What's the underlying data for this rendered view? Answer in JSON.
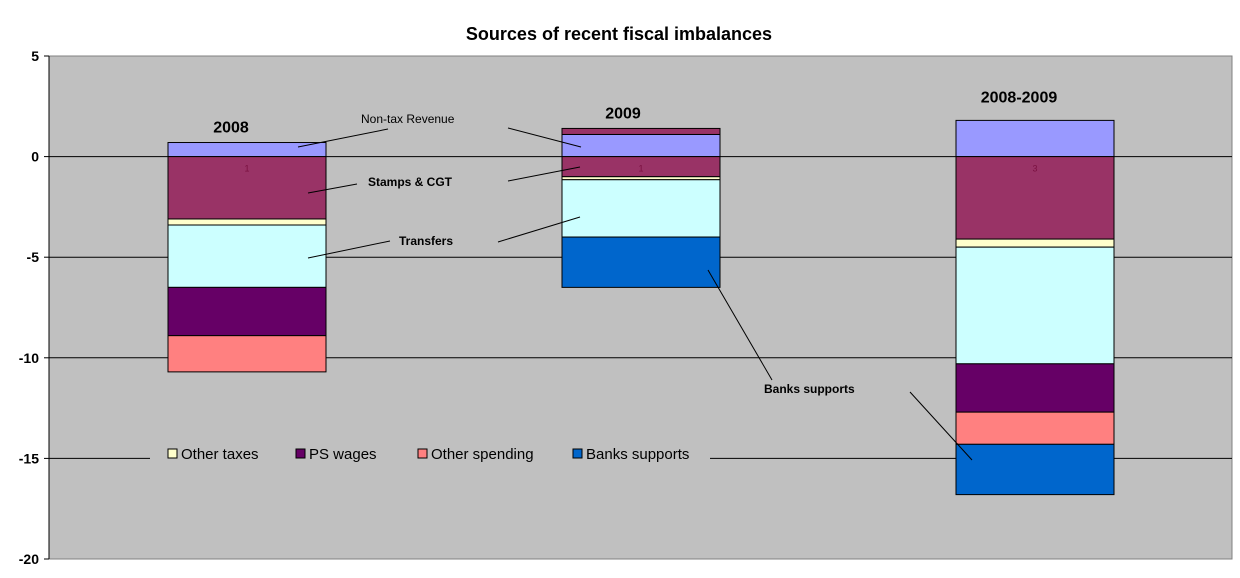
{
  "chart_data": {
    "type": "bar",
    "stacked": true,
    "title": "Sources of recent fiscal imbalances",
    "xlabel": "",
    "ylabel": "",
    "ylim": [
      -20,
      5
    ],
    "yticks": [
      5,
      0,
      -5,
      -10,
      -15,
      -20
    ],
    "grid": "horizontal",
    "legend_position": "lower-left",
    "categories": [
      "2008",
      "2009",
      "2008-2009"
    ],
    "series": [
      {
        "name": "Non-tax Revenue",
        "color": "#9999ff",
        "values": [
          0.7,
          1.1,
          1.8
        ]
      },
      {
        "name": "",
        "color": "#993366",
        "values": [
          0,
          0.3,
          0
        ]
      },
      {
        "name": "Stamps & CGT",
        "color": "#993366",
        "values": [
          -3.1,
          -1.0,
          -4.1
        ]
      },
      {
        "name": "Other taxes",
        "color": "#ffffcc",
        "values": [
          -0.3,
          -0.15,
          -0.4
        ]
      },
      {
        "name": "Transfers",
        "color": "#ccffff",
        "values": [
          -3.1,
          -2.85,
          -5.8
        ]
      },
      {
        "name": "PS wages",
        "color": "#660066",
        "values": [
          -2.4,
          0,
          -2.4
        ]
      },
      {
        "name": "Other spending",
        "color": "#ff8080",
        "values": [
          -1.8,
          0,
          -1.6
        ]
      },
      {
        "name": "Banks supports",
        "color": "#0066cc",
        "values": [
          0,
          -2.5,
          -2.5
        ]
      }
    ],
    "data_labels": [
      "1",
      "1",
      "3"
    ],
    "legend": [
      "Other taxes",
      "PS wages",
      "Other spending",
      "Banks supports"
    ],
    "annotations": {
      "non_tax": "Non-tax Revenue",
      "stamps": "Stamps & CGT",
      "transfers": "Transfers",
      "banks": "Banks supports"
    },
    "colors": {
      "plot_bg": "#c0c0c0",
      "grid": "#000000"
    }
  }
}
